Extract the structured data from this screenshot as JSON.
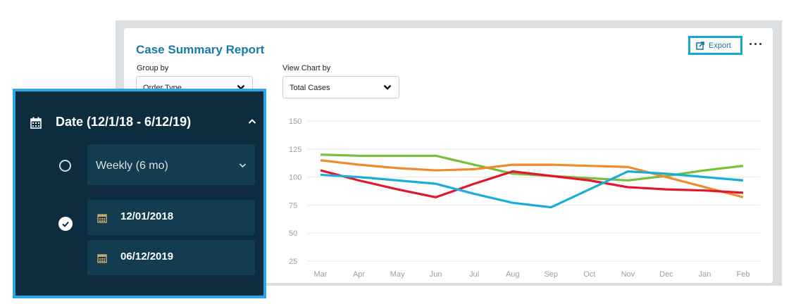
{
  "report": {
    "title": "Case Summary Report",
    "group_by_label": "Group by",
    "group_by_value": "Order Type",
    "view_chart_by_label": "View Chart by",
    "view_chart_by_value": "Total Cases",
    "export_label": "Export"
  },
  "date_panel": {
    "header": "Date (12/1/18 - 6/12/19)",
    "weekly_option": "Weekly (6 mo)",
    "start_date": "12/01/2018",
    "end_date": "06/12/2019"
  },
  "chart_data": {
    "type": "line",
    "categories": [
      "Mar",
      "Apr",
      "May",
      "Jun",
      "Jul",
      "Aug",
      "Sep",
      "Oct",
      "Nov",
      "Dec",
      "Jan",
      "Feb"
    ],
    "y_ticks": [
      150,
      125,
      100,
      75,
      50,
      25
    ],
    "ylim": [
      25,
      150
    ],
    "grid": true,
    "series": [
      {
        "color": "#7bbe3a",
        "values": [
          120,
          119,
          119,
          119,
          111,
          103,
          101,
          99,
          97,
          101,
          106,
          110
        ]
      },
      {
        "color": "#f08a2b",
        "values": [
          115,
          111,
          108,
          106,
          107,
          111,
          111,
          110,
          109,
          100,
          91,
          82
        ]
      },
      {
        "color": "#e2172f",
        "values": [
          106,
          97,
          89,
          82,
          94,
          105,
          101,
          97,
          91,
          89,
          88,
          86
        ]
      },
      {
        "color": "#1aaed6",
        "values": [
          102,
          100,
          97,
          94,
          85,
          77,
          73,
          89,
          105,
          103,
          100,
          97
        ]
      }
    ]
  }
}
